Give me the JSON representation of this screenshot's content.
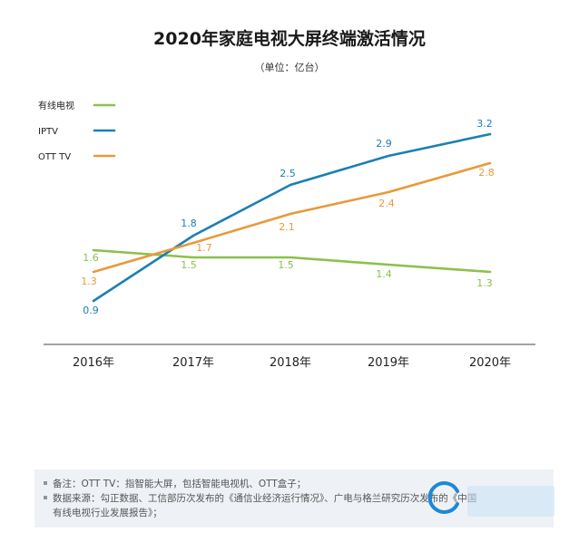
{
  "title": "2020年家庭电视大屏终端激活情况",
  "subtitle": "（单位：亿台）",
  "chart_data": {
    "type": "line",
    "title": "2020年家庭电视大屏终端激活情况",
    "unit": "亿台",
    "categories": [
      "2016年",
      "2017年",
      "2018年",
      "2019年",
      "2020年"
    ],
    "ylim": [
      0.5,
      3.5
    ],
    "grid": false,
    "legend_position": "top-left",
    "series": [
      {
        "name": "有线电视",
        "color": "#8cc04b",
        "values": [
          1.6,
          1.5,
          1.5,
          1.4,
          1.3
        ]
      },
      {
        "name": "IPTV",
        "color": "#1b7fb3",
        "values": [
          0.9,
          1.8,
          2.5,
          2.9,
          3.2
        ]
      },
      {
        "name": "OTT TV",
        "color": "#e79a3c",
        "values": [
          1.3,
          1.7,
          2.1,
          2.4,
          2.8
        ]
      }
    ]
  },
  "notes": {
    "line1": "备注：OTT TV：指智能大屏，包括智能电视机、OTT盒子；",
    "line2": "数据来源：勾正数据、工信部历次发布的《通信业经济运行情况》、广电与格兰研究历次发布的《中国",
    "line3": "有线电视行业发展报告》；"
  }
}
